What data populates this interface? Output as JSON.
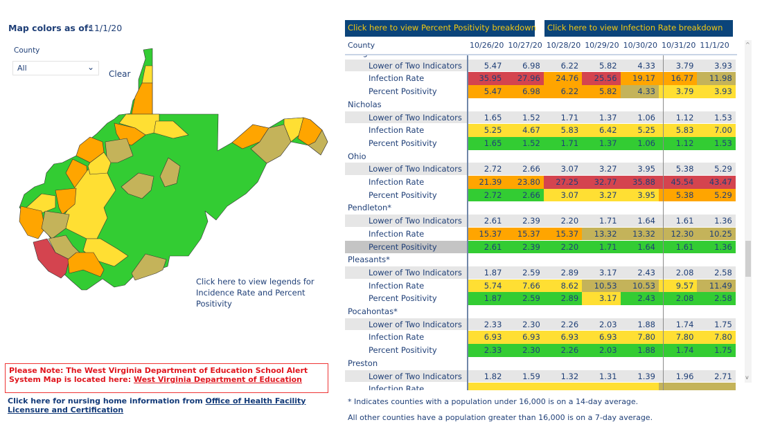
{
  "header": {
    "asof_label": "Map colors as of:",
    "asof_date": "11/1/20"
  },
  "filter": {
    "label": "County",
    "value": "All",
    "clear": "Clear",
    "chevron_icon": "chevron-down-icon"
  },
  "legend_link": "Click here to view legends for Incidence Rate and Percent Positivity",
  "note": {
    "text": "Please Note: The West Virginia Department of Education School Alert System Map is located here: ",
    "link": "West Virginia Department of Education"
  },
  "nursing": {
    "text": "Click here for nursing home information from ",
    "link": "Office of Health Facility Licensure and Certification"
  },
  "buttons": {
    "pp": "Click here to view Percent Positivity breakdown",
    "ir": "Click here to view Infection Rate breakdown"
  },
  "colors": {
    "r": "#d4444f",
    "o": "#ffa500",
    "y": "#ffdf33",
    "t": "#c4b35a",
    "g": "#33cc33",
    "header_bg": "#0b447a",
    "header_text": "#f2c811"
  },
  "table": {
    "county_header": "County",
    "dates": [
      "10/26/20",
      "10/27/20",
      "10/28/20",
      "10/29/20",
      "10/30/20",
      "10/31/20",
      "11/1/20"
    ],
    "counties": [
      {
        "name": "Morgan",
        "rows": [
          {
            "label": "Lower of Two Indicators",
            "values": [
              "5.47",
              "6.98",
              "6.22",
              "5.82",
              "4.33",
              "3.79",
              "3.93"
            ],
            "colors": []
          },
          {
            "label": "Infection Rate",
            "values": [
              "35.95",
              "27.96",
              "24.76",
              "25.56",
              "19.17",
              "16.77",
              "11.98"
            ],
            "colors": [
              "r",
              "r",
              "o",
              "r",
              "o",
              "o",
              "t"
            ]
          },
          {
            "label": "Percent Positivity",
            "values": [
              "5.47",
              "6.98",
              "6.22",
              "5.82",
              "4.33",
              "3.79",
              "3.93"
            ],
            "colors": [
              "o",
              "o",
              "o",
              "o",
              "t",
              "y",
              "y"
            ]
          }
        ]
      },
      {
        "name": "Nicholas",
        "rows": [
          {
            "label": "Lower of Two Indicators",
            "values": [
              "1.65",
              "1.52",
              "1.71",
              "1.37",
              "1.06",
              "1.12",
              "1.53"
            ],
            "colors": []
          },
          {
            "label": "Infection Rate",
            "values": [
              "5.25",
              "4.67",
              "5.83",
              "6.42",
              "5.25",
              "5.83",
              "7.00"
            ],
            "colors": [
              "y",
              "y",
              "y",
              "y",
              "y",
              "y",
              "y"
            ]
          },
          {
            "label": "Percent Positivity",
            "values": [
              "1.65",
              "1.52",
              "1.71",
              "1.37",
              "1.06",
              "1.12",
              "1.53"
            ],
            "colors": [
              "g",
              "g",
              "g",
              "g",
              "g",
              "g",
              "g"
            ]
          }
        ]
      },
      {
        "name": "Ohio",
        "rows": [
          {
            "label": "Lower of Two Indicators",
            "values": [
              "2.72",
              "2.66",
              "3.07",
              "3.27",
              "3.95",
              "5.38",
              "5.29"
            ],
            "colors": []
          },
          {
            "label": "Infection Rate",
            "values": [
              "21.39",
              "23.80",
              "27.25",
              "32.77",
              "35.88",
              "45.54",
              "43.47"
            ],
            "colors": [
              "o",
              "o",
              "r",
              "r",
              "r",
              "r",
              "r"
            ]
          },
          {
            "label": "Percent Positivity",
            "values": [
              "2.72",
              "2.66",
              "3.07",
              "3.27",
              "3.95",
              "5.38",
              "5.29"
            ],
            "colors": [
              "g",
              "g",
              "y",
              "y",
              "y",
              "o",
              "o"
            ]
          }
        ]
      },
      {
        "name": "Pendleton*",
        "rows": [
          {
            "label": "Lower of Two Indicators",
            "values": [
              "2.61",
              "2.39",
              "2.20",
              "1.71",
              "1.64",
              "1.61",
              "1.36"
            ],
            "colors": []
          },
          {
            "label": "Infection Rate",
            "values": [
              "15.37",
              "15.37",
              "15.37",
              "13.32",
              "13.32",
              "12.30",
              "10.25"
            ],
            "colors": [
              "o",
              "o",
              "o",
              "t",
              "t",
              "t",
              "t"
            ]
          },
          {
            "label": "Percent Positivity",
            "values": [
              "2.61",
              "2.39",
              "2.20",
              "1.71",
              "1.64",
              "1.61",
              "1.36"
            ],
            "colors": [
              "g",
              "g",
              "g",
              "g",
              "g",
              "g",
              "g"
            ],
            "selected": true
          }
        ]
      },
      {
        "name": "Pleasants*",
        "rows": [
          {
            "label": "Lower of Two Indicators",
            "values": [
              "1.87",
              "2.59",
              "2.89",
              "3.17",
              "2.43",
              "2.08",
              "2.58"
            ],
            "colors": []
          },
          {
            "label": "Infection Rate",
            "values": [
              "5.74",
              "7.66",
              "8.62",
              "10.53",
              "10.53",
              "9.57",
              "11.49"
            ],
            "colors": [
              "y",
              "y",
              "y",
              "t",
              "t",
              "y",
              "t"
            ]
          },
          {
            "label": "Percent Positivity",
            "values": [
              "1.87",
              "2.59",
              "2.89",
              "3.17",
              "2.43",
              "2.08",
              "2.58"
            ],
            "colors": [
              "g",
              "g",
              "g",
              "y",
              "g",
              "g",
              "g"
            ]
          }
        ]
      },
      {
        "name": "Pocahontas*",
        "rows": [
          {
            "label": "Lower of Two Indicators",
            "values": [
              "2.33",
              "2.30",
              "2.26",
              "2.03",
              "1.88",
              "1.74",
              "1.75"
            ],
            "colors": []
          },
          {
            "label": "Infection Rate",
            "values": [
              "6.93",
              "6.93",
              "6.93",
              "6.93",
              "7.80",
              "7.80",
              "7.80"
            ],
            "colors": [
              "y",
              "y",
              "y",
              "y",
              "y",
              "y",
              "y"
            ]
          },
          {
            "label": "Percent Positivity",
            "values": [
              "2.33",
              "2.30",
              "2.26",
              "2.03",
              "1.88",
              "1.74",
              "1.75"
            ],
            "colors": [
              "g",
              "g",
              "g",
              "g",
              "g",
              "g",
              "g"
            ]
          }
        ]
      },
      {
        "name": "Preston",
        "rows": [
          {
            "label": "Lower of Two Indicators",
            "values": [
              "1.82",
              "1.59",
              "1.32",
              "1.31",
              "1.39",
              "1.96",
              "2.71"
            ],
            "colors": []
          },
          {
            "label": "Infection Rate",
            "values": [
              "",
              "",
              "",
              "",
              "",
              "",
              ""
            ],
            "colors": [
              "y",
              "y",
              "y",
              "y",
              "y",
              "t",
              "t"
            ]
          }
        ]
      }
    ]
  },
  "footnotes": [
    "* Indicates counties with a population under 16,000 is on a 14-day average.",
    "All other counties have a population greater than 16,000 is on a 7-day average."
  ]
}
